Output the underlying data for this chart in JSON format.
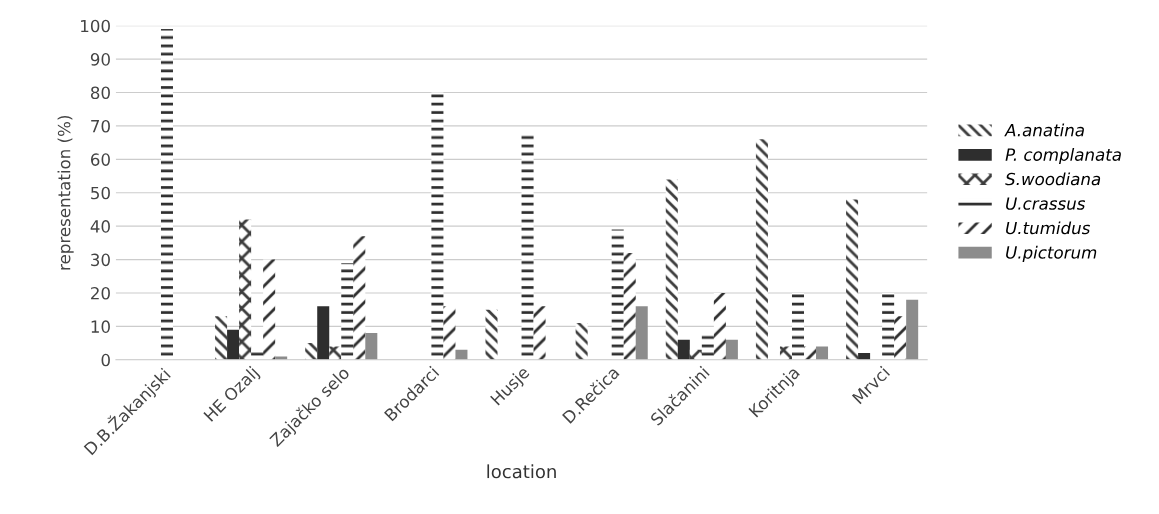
{
  "chart_data": {
    "type": "bar",
    "xlabel": "location",
    "ylabel": "representation (%)",
    "categories": [
      "D.B.Žakanjski",
      "HE Ozalj",
      "Zajačko selo",
      "Brodarci",
      "Husje",
      "D.Rečica",
      "Slačanini",
      "Koritnja",
      "Mrvci"
    ],
    "series": [
      {
        "name": "A.anatina",
        "color": "#3c3c3c",
        "values": [
          0,
          13,
          5,
          0,
          15,
          11,
          54,
          66,
          48
        ]
      },
      {
        "name": "P. complanata",
        "color": "#2e2e2e",
        "values": [
          0,
          9,
          16,
          0,
          0,
          0,
          6,
          0,
          2
        ]
      },
      {
        "name": "S.woodiana",
        "color": "#3c3c3c",
        "values": [
          0,
          42,
          4,
          0,
          0,
          0,
          3,
          4,
          0
        ]
      },
      {
        "name": "U.crassus",
        "color": "#2e2e2e",
        "values": [
          99,
          3,
          29,
          80,
          68,
          39,
          8,
          20,
          20
        ]
      },
      {
        "name": "U.tumidus",
        "color": "#2e2e2e",
        "values": [
          0,
          30,
          37,
          16,
          16,
          32,
          20,
          4,
          13
        ]
      },
      {
        "name": "U.pictorum",
        "color": "#8c8c8c",
        "values": [
          0,
          1,
          8,
          3,
          0,
          16,
          6,
          4,
          18
        ]
      }
    ],
    "ylim": [
      0,
      100
    ],
    "yticks": [
      0,
      10,
      20,
      30,
      40,
      50,
      60,
      70,
      80,
      90,
      100
    ],
    "grid": "y",
    "legend": "right"
  }
}
